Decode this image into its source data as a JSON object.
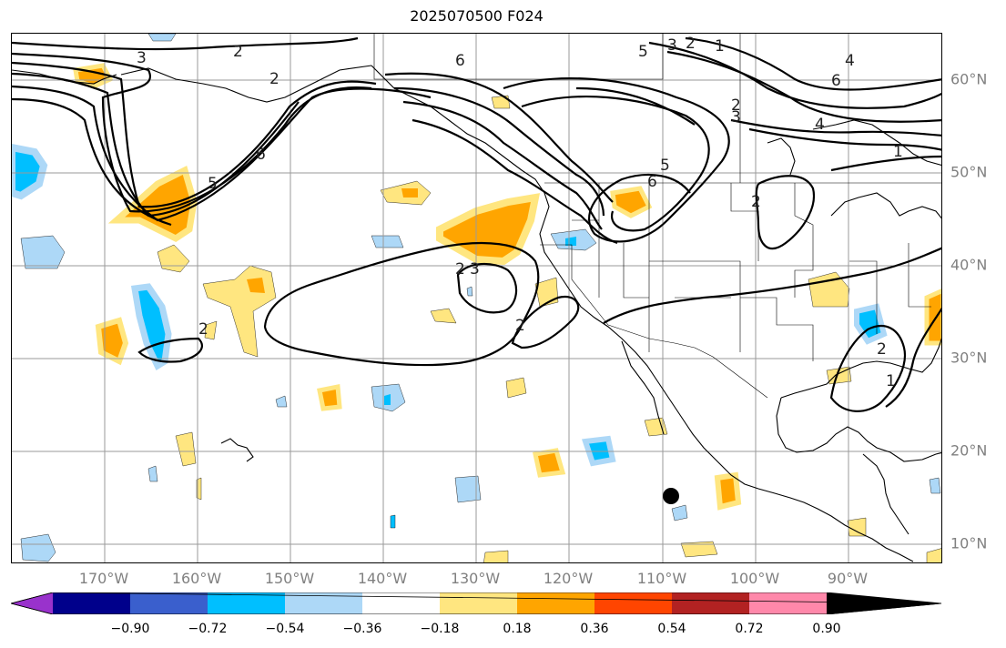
{
  "title": "2025070500 F024",
  "map": {
    "lat_labels": [
      "60°N",
      "50°N",
      "40°N",
      "30°N",
      "20°N",
      "10°N"
    ],
    "lon_labels": [
      "170°W",
      "160°W",
      "150°W",
      "140°W",
      "130°W",
      "120°W",
      "110°W",
      "100°W",
      "90°W"
    ],
    "contour_labels": [
      "3",
      "2",
      "6",
      "5",
      "6",
      "5",
      "3",
      "2",
      "1",
      "6",
      "5",
      "4",
      "3",
      "2",
      "1",
      "2",
      "4",
      "6",
      "2",
      "2",
      "2",
      "3",
      "2",
      "1",
      "2"
    ],
    "marker": "storm-center-dot"
  },
  "colorbar": {
    "ticks": [
      "−0.90",
      "−0.72",
      "−0.54",
      "−0.36",
      "−0.18",
      "0.18",
      "0.36",
      "0.54",
      "0.72",
      "0.90"
    ],
    "colors": [
      "#9932cc",
      "#00008b",
      "#3a5fcd",
      "#00bfff",
      "#add8f7",
      "#ffffff",
      "#ffe680",
      "#ffa500",
      "#ff4500",
      "#b22222",
      "#ff88aa"
    ]
  }
}
